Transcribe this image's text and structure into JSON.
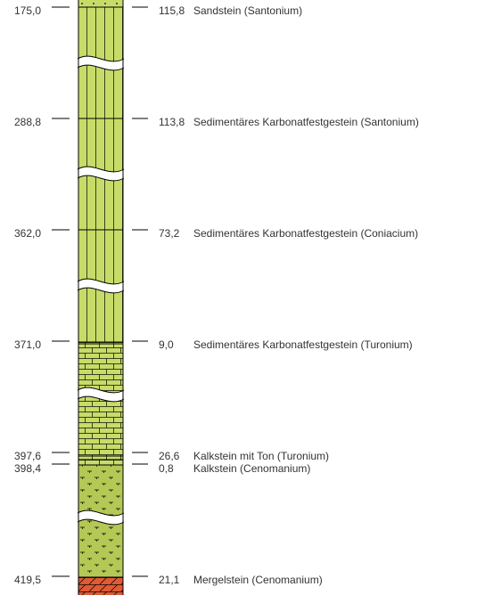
{
  "colors": {
    "green_fill": "#c7dc68",
    "green_dark": "#b4c855",
    "red_fill": "#e05a33",
    "line": "#000000",
    "text": "#333333"
  },
  "layers": [
    {
      "depth": "175,0",
      "thickness": "115,8",
      "description": "Sandstein (Santonium)",
      "pattern": "sandstone-dots"
    },
    {
      "depth": "288,8",
      "thickness": "113,8",
      "description": "Sedimentäres Karbonatfestgestein (Santonium)",
      "pattern": "vertical-lines"
    },
    {
      "depth": "362,0",
      "thickness": "73,2",
      "description": "Sedimentäres Karbonatfestgestein (Coniacium)",
      "pattern": "vertical-lines"
    },
    {
      "depth": "371,0",
      "thickness": "9,0",
      "description": "Sedimentäres Karbonatfestgestein (Turonium)",
      "pattern": "vertical-lines"
    },
    {
      "depth": "397,6",
      "thickness": "26,6",
      "description": "Kalkstein mit Ton (Turonium)",
      "pattern": "brick"
    },
    {
      "depth": "398,4",
      "thickness": "0,8",
      "description": "Kalkstein (Cenomanium)",
      "pattern": "brick"
    },
    {
      "depth": "419,5",
      "thickness": "21,1",
      "description": "Mergelstein (Cenomanium)",
      "pattern": "marl-marks"
    }
  ]
}
